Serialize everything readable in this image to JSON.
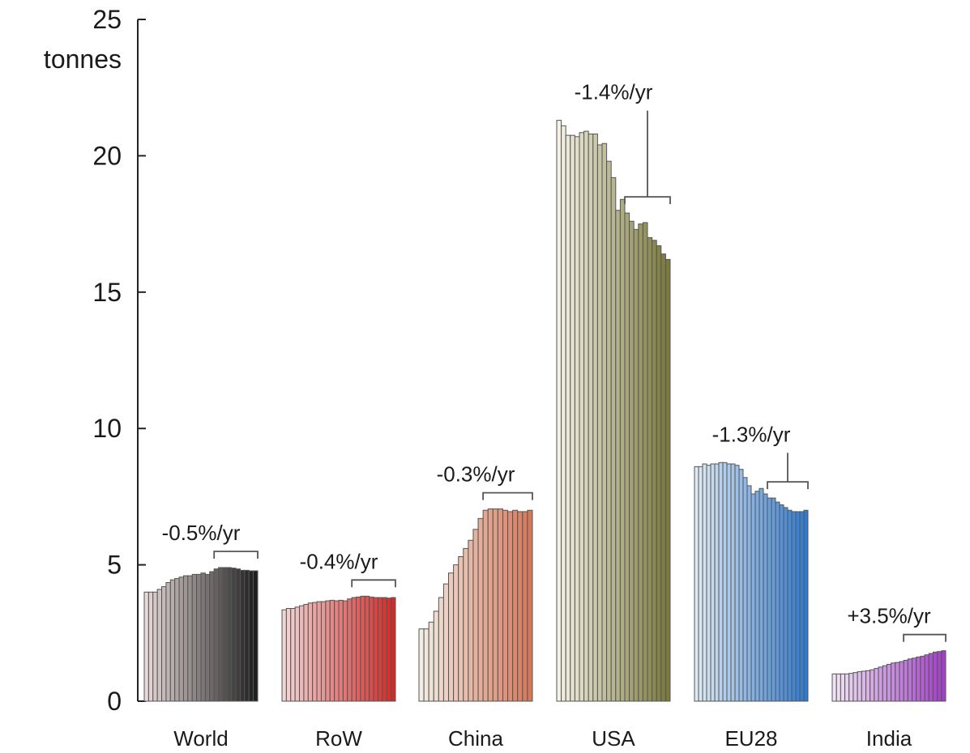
{
  "chart_data": {
    "type": "bar",
    "ylabel": "tonnes",
    "ylim": [
      0,
      25
    ],
    "yticks": [
      0,
      5,
      10,
      15,
      20,
      25
    ],
    "groups": [
      {
        "name": "World",
        "rate_label": "-0.5%/yr",
        "color_light": "#e8d8d8",
        "color_dark": "#1e1e1e",
        "values": [
          4.0,
          4.0,
          4.0,
          4.1,
          4.2,
          4.35,
          4.45,
          4.5,
          4.55,
          4.6,
          4.6,
          4.65,
          4.65,
          4.7,
          4.65,
          4.75,
          4.85,
          4.9,
          4.9,
          4.9,
          4.88,
          4.85,
          4.8,
          4.8,
          4.78,
          4.78
        ]
      },
      {
        "name": "RoW",
        "rate_label": "-0.4%/yr",
        "color_light": "#f2d4d4",
        "color_dark": "#d42a26",
        "values": [
          3.35,
          3.4,
          3.4,
          3.45,
          3.5,
          3.55,
          3.6,
          3.62,
          3.65,
          3.65,
          3.68,
          3.7,
          3.68,
          3.7,
          3.68,
          3.75,
          3.8,
          3.82,
          3.85,
          3.85,
          3.82,
          3.8,
          3.8,
          3.8,
          3.78,
          3.8
        ]
      },
      {
        "name": "China",
        "rate_label": "-0.3%/yr",
        "color_light": "#f2ece4",
        "color_dark": "#d8785a",
        "values": [
          2.65,
          2.65,
          2.9,
          3.3,
          3.8,
          4.3,
          4.7,
          5.0,
          5.3,
          5.6,
          5.9,
          6.3,
          6.7,
          7.0,
          7.05,
          7.05,
          7.05,
          7.0,
          6.95,
          7.0,
          6.95,
          6.95,
          7.0
        ]
      },
      {
        "name": "USA",
        "rate_label": "-1.4%/yr",
        "color_light": "#f4f2e4",
        "color_dark": "#7a7a3c",
        "values": [
          21.3,
          21.1,
          20.75,
          20.75,
          20.7,
          20.85,
          20.9,
          20.8,
          20.8,
          20.4,
          20.45,
          19.8,
          19.2,
          18.0,
          18.4,
          17.9,
          17.6,
          17.3,
          17.5,
          17.55,
          17.0,
          16.9,
          16.7,
          16.4,
          16.2
        ]
      },
      {
        "name": "EU28",
        "rate_label": "-1.3%/yr",
        "color_light": "#dfeaf4",
        "color_dark": "#2f7ad0",
        "values": [
          8.6,
          8.6,
          8.7,
          8.65,
          8.7,
          8.7,
          8.75,
          8.75,
          8.7,
          8.7,
          8.65,
          8.5,
          8.2,
          7.9,
          7.6,
          7.7,
          7.8,
          7.6,
          7.45,
          7.45,
          7.3,
          7.2,
          7.1,
          7.0,
          6.95,
          6.95,
          6.95,
          7.0
        ]
      },
      {
        "name": "India",
        "rate_label": "+3.5%/yr",
        "color_light": "#f0e4f4",
        "color_dark": "#a33fc9",
        "values": [
          1.0,
          1.0,
          1.0,
          1.0,
          1.02,
          1.05,
          1.08,
          1.1,
          1.12,
          1.15,
          1.2,
          1.25,
          1.3,
          1.35,
          1.4,
          1.42,
          1.45,
          1.5,
          1.55,
          1.58,
          1.62,
          1.65,
          1.7,
          1.75,
          1.8,
          1.82,
          1.85
        ]
      }
    ]
  }
}
